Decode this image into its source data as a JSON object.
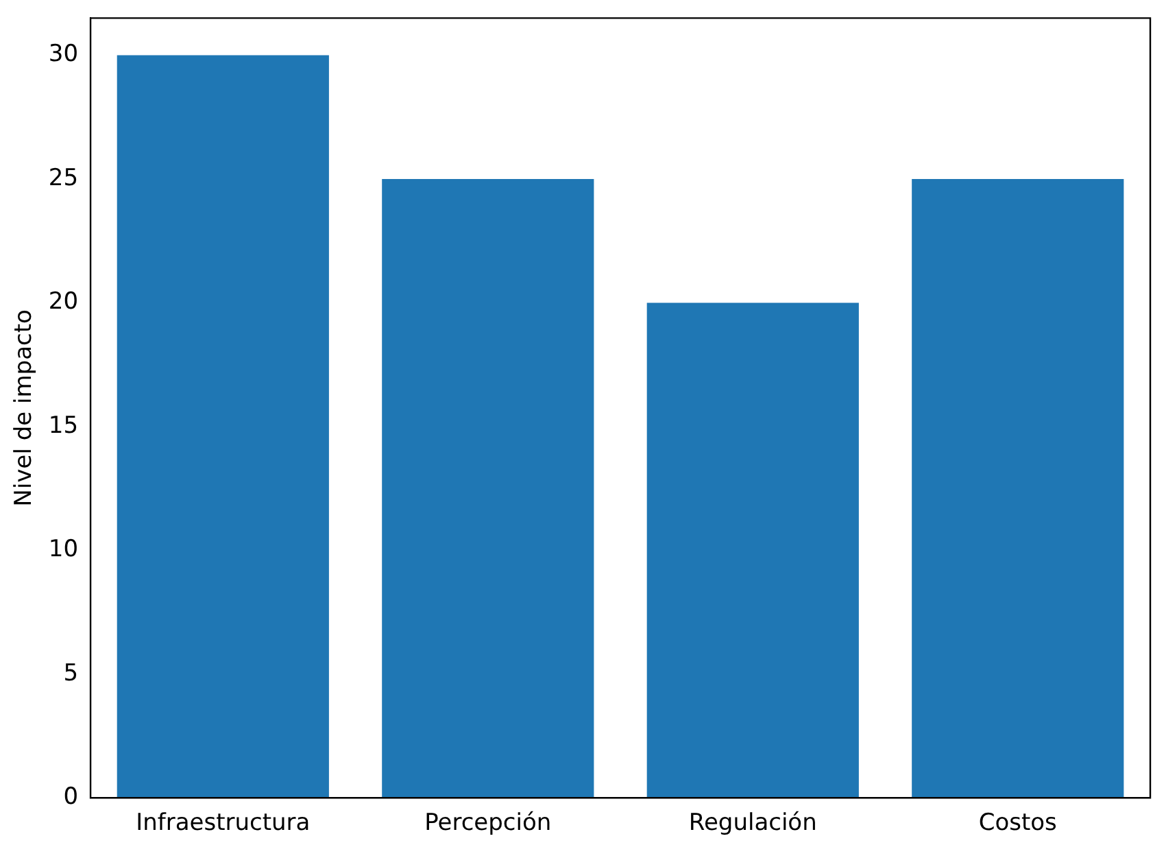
{
  "chart_data": {
    "type": "bar",
    "ylabel": "Nivel de impacto",
    "categories": [
      "Infraestructura",
      "Percepción",
      "Regulación",
      "Costos"
    ],
    "values": [
      30,
      25,
      20,
      25
    ],
    "color": "#1f77b4",
    "ylim": [
      0,
      31.5
    ],
    "yticks": [
      0,
      5,
      10,
      15,
      20,
      25,
      30
    ],
    "grid": false,
    "legend": false
  }
}
